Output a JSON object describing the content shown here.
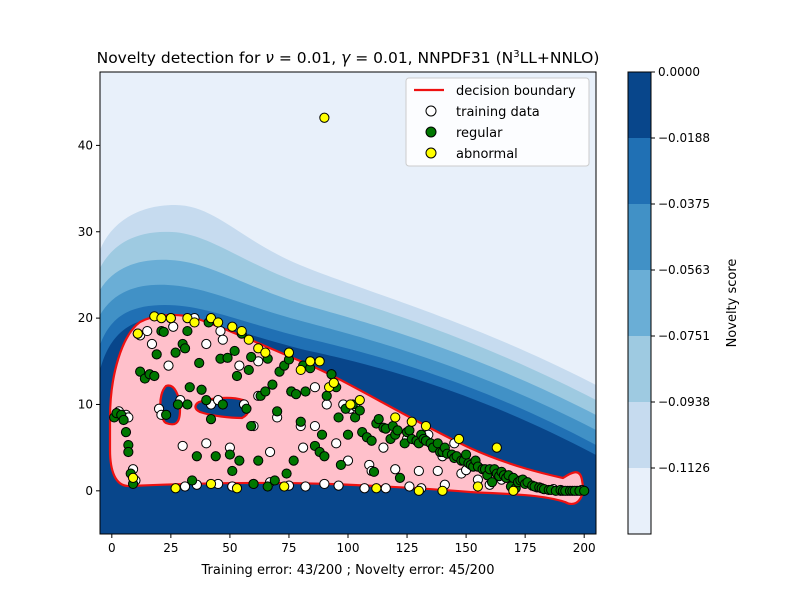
{
  "chart_data": {
    "type": "scatter",
    "title": {
      "prefix": "Novelty detection for ",
      "nu_symbol": "ν",
      "nu_value": " = 0.01, ",
      "gamma_symbol": "γ",
      "gamma_value": " = 0.01, NNPDF31 (N",
      "superscript": "3",
      "suffix": "LL+NNLO)"
    },
    "xlabel": "Training error: 43/200 ; Novelty error: 45/200",
    "xlim": [
      -5,
      205
    ],
    "ylim": [
      -5,
      48.5
    ],
    "xticks": [
      "0",
      "25",
      "50",
      "75",
      "100",
      "125",
      "150",
      "175",
      "200"
    ],
    "yticks": [
      "0",
      "10",
      "20",
      "30",
      "40"
    ],
    "grid": false,
    "legend": {
      "placement": "top-right",
      "entries": [
        "decision boundary",
        "training data",
        "regular",
        "abnormal"
      ]
    },
    "colorbar": {
      "label": "Novelty score",
      "ticks": [
        "0.0000",
        "−0.0188",
        "−0.0375",
        "−0.0563",
        "−0.0751",
        "−0.0938",
        "−0.1126"
      ],
      "levels": [
        "#e8f0fa",
        "#c6dbef",
        "#9ecae1",
        "#6aaed6",
        "#4191c6",
        "#2070b4",
        "#08468b"
      ]
    },
    "colors": {
      "boundary": "#ee1111",
      "inside_fill": "#ffc0cb",
      "training": "#ffffff",
      "regular": "#007700",
      "abnormal": "#ffff00"
    },
    "series": [
      {
        "name": "training data",
        "points": [
          [
            3,
            9.2
          ],
          [
            6,
            8.8
          ],
          [
            7,
            8.5
          ],
          [
            9,
            2.5
          ],
          [
            10,
            1.2
          ],
          [
            12,
            18
          ],
          [
            15,
            18.5
          ],
          [
            17,
            17
          ],
          [
            20,
            9.5
          ],
          [
            21,
            8.8
          ],
          [
            24,
            14.5
          ],
          [
            26,
            19
          ],
          [
            29,
            10.5
          ],
          [
            30,
            5.2
          ],
          [
            31,
            0.5
          ],
          [
            35,
            20
          ],
          [
            36,
            0.7
          ],
          [
            40,
            17
          ],
          [
            42,
            10
          ],
          [
            40,
            5.5
          ],
          [
            45,
            10.5
          ],
          [
            45,
            0.8
          ],
          [
            46,
            18.5
          ],
          [
            47,
            17.5
          ],
          [
            50,
            5
          ],
          [
            51,
            0.5
          ],
          [
            54,
            14.5
          ],
          [
            56,
            10
          ],
          [
            60,
            7.5
          ],
          [
            60,
            0.8
          ],
          [
            62,
            15
          ],
          [
            62,
            11
          ],
          [
            67,
            4.5
          ],
          [
            67,
            1
          ],
          [
            70,
            8.5
          ],
          [
            75,
            0.6
          ],
          [
            76,
            11.5
          ],
          [
            80,
            7.5
          ],
          [
            81,
            5
          ],
          [
            82,
            0.5
          ],
          [
            86,
            12
          ],
          [
            86,
            7.5
          ],
          [
            90,
            0.8
          ],
          [
            91,
            10
          ],
          [
            95,
            5.5
          ],
          [
            96,
            0.6
          ],
          [
            98,
            10
          ],
          [
            100,
            3.5
          ],
          [
            101,
            9.5
          ],
          [
            103,
            9.8
          ],
          [
            107,
            0.3
          ],
          [
            109,
            3
          ],
          [
            110,
            2.3
          ],
          [
            115,
            5
          ],
          [
            116,
            0.3
          ],
          [
            120,
            2.5
          ],
          [
            125,
            6
          ],
          [
            126,
            0.5
          ],
          [
            130,
            2.3
          ],
          [
            131,
            0.3
          ],
          [
            134,
            6.5
          ],
          [
            138,
            2.3
          ],
          [
            140,
            4
          ],
          [
            141,
            0.7
          ],
          [
            145,
            5.5
          ],
          [
            148,
            2
          ],
          [
            150,
            2.4
          ],
          [
            155,
            1.3
          ],
          [
            160,
            0.7
          ],
          [
            165,
            1.3
          ],
          [
            170,
            0.5
          ],
          [
            180,
            0.4
          ],
          [
            187,
            0.2
          ],
          [
            190,
            0
          ],
          [
            193,
            0
          ],
          [
            197,
            0
          ],
          [
            199,
            0.1
          ]
        ]
      },
      {
        "name": "regular",
        "points": [
          [
            1,
            8.5
          ],
          [
            2,
            9
          ],
          [
            4,
            8.8
          ],
          [
            5,
            8.2
          ],
          [
            6,
            6.8
          ],
          [
            7,
            5.3
          ],
          [
            7,
            4.5
          ],
          [
            8,
            2
          ],
          [
            9,
            0.8
          ],
          [
            11,
            18.2
          ],
          [
            12,
            13.8
          ],
          [
            14,
            13
          ],
          [
            16,
            13.5
          ],
          [
            18,
            13.3
          ],
          [
            19,
            15.8
          ],
          [
            21,
            18.5
          ],
          [
            22,
            18.4
          ],
          [
            23,
            8.8
          ],
          [
            25,
            20
          ],
          [
            27,
            16
          ],
          [
            28,
            10
          ],
          [
            30,
            17
          ],
          [
            31,
            16.5
          ],
          [
            32,
            18.5
          ],
          [
            32,
            10
          ],
          [
            33,
            12
          ],
          [
            34,
            1.2
          ],
          [
            36,
            4
          ],
          [
            37,
            14.8
          ],
          [
            38,
            11.7
          ],
          [
            40,
            10.5
          ],
          [
            41,
            19.5
          ],
          [
            42,
            8.3
          ],
          [
            44,
            4
          ],
          [
            46,
            15.3
          ],
          [
            47,
            10
          ],
          [
            49,
            15.4
          ],
          [
            50,
            4.2
          ],
          [
            51,
            2.3
          ],
          [
            52,
            16.2
          ],
          [
            53,
            13.3
          ],
          [
            54,
            3.5
          ],
          [
            55,
            18.2
          ],
          [
            57,
            9.5
          ],
          [
            58,
            14
          ],
          [
            59,
            15.5
          ],
          [
            59,
            7.5
          ],
          [
            60,
            0.8
          ],
          [
            62,
            3.5
          ],
          [
            63,
            11
          ],
          [
            65,
            11.5
          ],
          [
            66,
            15.3
          ],
          [
            66,
            0.5
          ],
          [
            68,
            12.3
          ],
          [
            69,
            1.2
          ],
          [
            70,
            9.2
          ],
          [
            71,
            13.8
          ],
          [
            73,
            14.5
          ],
          [
            74,
            2
          ],
          [
            75,
            15.2
          ],
          [
            76,
            11.5
          ],
          [
            77,
            3.5
          ],
          [
            78,
            11.2
          ],
          [
            80,
            8
          ],
          [
            81,
            14.5
          ],
          [
            82,
            11.5
          ],
          [
            84,
            14.2
          ],
          [
            86,
            5.2
          ],
          [
            88,
            4.5
          ],
          [
            89,
            6.5
          ],
          [
            90,
            4
          ],
          [
            91,
            11
          ],
          [
            93,
            13.5
          ],
          [
            95,
            12
          ],
          [
            96,
            8.5
          ],
          [
            97,
            3
          ],
          [
            99,
            9.5
          ],
          [
            100,
            6.5
          ],
          [
            102,
            10
          ],
          [
            103,
            8.5
          ],
          [
            105,
            9.3
          ],
          [
            106,
            6.8
          ],
          [
            108,
            6.2
          ],
          [
            110,
            5.8
          ],
          [
            111,
            2.2
          ],
          [
            112,
            7.8
          ],
          [
            113,
            8.3
          ],
          [
            115,
            7.3
          ],
          [
            116,
            7.2
          ],
          [
            118,
            6
          ],
          [
            119,
            7.5
          ],
          [
            120,
            6.5
          ],
          [
            121,
            7
          ],
          [
            122,
            1.5
          ],
          [
            124,
            5.5
          ],
          [
            125,
            6.8
          ],
          [
            126,
            7
          ],
          [
            127,
            6
          ],
          [
            129,
            5.8
          ],
          [
            130,
            5.5
          ],
          [
            131,
            6.5
          ],
          [
            132,
            6
          ],
          [
            133,
            5.8
          ],
          [
            135,
            5.5
          ],
          [
            136,
            5
          ],
          [
            138,
            5.5
          ],
          [
            139,
            4.5
          ],
          [
            140,
            4.5
          ],
          [
            141,
            5
          ],
          [
            142,
            4.3
          ],
          [
            144,
            4.2
          ],
          [
            145,
            3.8
          ],
          [
            146,
            4
          ],
          [
            148,
            3.5
          ],
          [
            149,
            3.5
          ],
          [
            150,
            4.2
          ],
          [
            151,
            3.2
          ],
          [
            152,
            3
          ],
          [
            153,
            2.8
          ],
          [
            154,
            3.5
          ],
          [
            155,
            2.8
          ],
          [
            157,
            2.5
          ],
          [
            158,
            2.5
          ],
          [
            159,
            1.8
          ],
          [
            160,
            2.5
          ],
          [
            161,
            1
          ],
          [
            162,
            2.5
          ],
          [
            163,
            2
          ],
          [
            164,
            1.7
          ],
          [
            165,
            2.2
          ],
          [
            166,
            1.8
          ],
          [
            167,
            1.5
          ],
          [
            168,
            1.8
          ],
          [
            169,
            0.5
          ],
          [
            170,
            1.5
          ],
          [
            171,
            0.3
          ],
          [
            172,
            1
          ],
          [
            173,
            1.2
          ],
          [
            174,
            1.3
          ],
          [
            175,
            0.8
          ],
          [
            176,
            1
          ],
          [
            178,
            0.6
          ],
          [
            179,
            0.5
          ],
          [
            181,
            0.4
          ],
          [
            182,
            0.3
          ],
          [
            183,
            0.2
          ],
          [
            185,
            0.1
          ],
          [
            186,
            0.1
          ],
          [
            188,
            0
          ],
          [
            190,
            0.1
          ],
          [
            191,
            0
          ],
          [
            192,
            0
          ],
          [
            194,
            0
          ],
          [
            195,
            0
          ],
          [
            196,
            0
          ],
          [
            198,
            0
          ],
          [
            200,
            0
          ]
        ]
      },
      {
        "name": "abnormal",
        "points": [
          [
            9,
            1.5
          ],
          [
            11,
            18.2
          ],
          [
            18,
            20.2
          ],
          [
            21,
            20
          ],
          [
            25,
            20
          ],
          [
            27,
            0.3
          ],
          [
            32,
            20
          ],
          [
            35,
            19.5
          ],
          [
            42,
            0.8
          ],
          [
            42,
            20
          ],
          [
            45,
            19.5
          ],
          [
            51,
            19
          ],
          [
            53,
            0.3
          ],
          [
            55,
            18.5
          ],
          [
            58,
            17.5
          ],
          [
            62,
            16.5
          ],
          [
            65,
            16
          ],
          [
            73,
            0.5
          ],
          [
            75,
            16
          ],
          [
            80,
            14
          ],
          [
            84,
            15
          ],
          [
            88,
            15
          ],
          [
            90,
            43.2
          ],
          [
            92,
            12
          ],
          [
            94,
            12.5
          ],
          [
            101,
            10
          ],
          [
            105,
            10.5
          ],
          [
            112,
            0.3
          ],
          [
            120,
            8.5
          ],
          [
            127,
            8
          ],
          [
            130,
            0
          ],
          [
            133,
            7.5
          ],
          [
            140,
            0
          ],
          [
            147,
            6
          ],
          [
            155,
            0.5
          ],
          [
            163,
            5
          ],
          [
            170,
            0
          ]
        ]
      }
    ]
  }
}
